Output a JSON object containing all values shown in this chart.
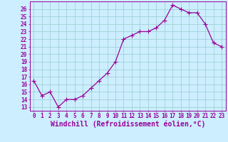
{
  "x": [
    0,
    1,
    2,
    3,
    4,
    5,
    6,
    7,
    8,
    9,
    10,
    11,
    12,
    13,
    14,
    15,
    16,
    17,
    18,
    19,
    20,
    21,
    22,
    23
  ],
  "y": [
    16.5,
    14.5,
    15.0,
    13.0,
    14.0,
    14.0,
    14.5,
    15.5,
    16.5,
    17.5,
    19.0,
    22.0,
    22.5,
    23.0,
    23.0,
    23.5,
    24.5,
    26.5,
    26.0,
    25.5,
    25.5,
    24.0,
    21.5,
    21.0
  ],
  "line_color": "#990099",
  "marker": "+",
  "markersize": 4,
  "linewidth": 0.9,
  "bg_color": "#cceeff",
  "grid_color": "#99cccc",
  "xlabel": "Windchill (Refroidissement éolien,°C)",
  "xlabel_color": "#990099",
  "ylabel_ticks": [
    13,
    14,
    15,
    16,
    17,
    18,
    19,
    20,
    21,
    22,
    23,
    24,
    25,
    26
  ],
  "ylim": [
    12.5,
    27.0
  ],
  "xlim": [
    -0.5,
    23.5
  ],
  "xtick_labels": [
    "0",
    "1",
    "2",
    "3",
    "4",
    "5",
    "6",
    "7",
    "8",
    "9",
    "10",
    "11",
    "12",
    "13",
    "14",
    "15",
    "16",
    "17",
    "18",
    "19",
    "20",
    "21",
    "22",
    "23"
  ],
  "tick_color": "#990099",
  "tick_fontsize": 5.5,
  "xlabel_fontsize": 7.0,
  "spine_color": "#990099"
}
